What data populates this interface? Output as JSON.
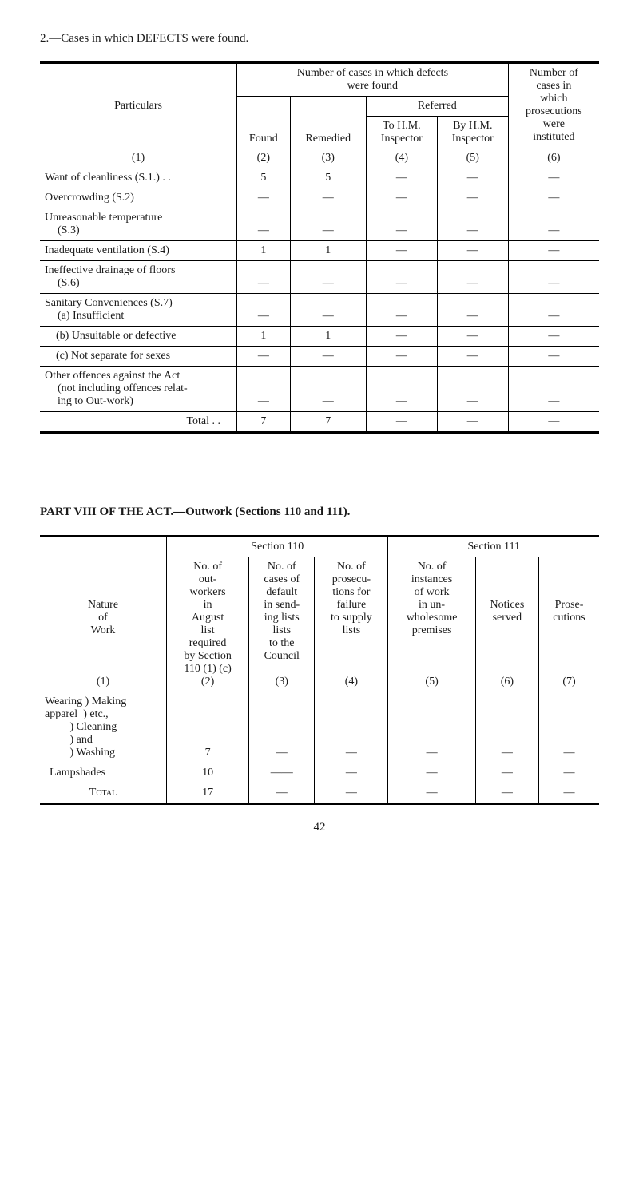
{
  "section1": {
    "title": "2.—Cases in which DEFECTS were found.",
    "header": {
      "particulars": "Particulars",
      "col1_num": "(1)",
      "number_cases_line1": "Number of cases in which defects",
      "number_cases_line2": "were found",
      "found": "Found",
      "found_num": "(2)",
      "remedied": "Remedied",
      "remedied_num": "(3)",
      "referred": "Referred",
      "to_hm": "To H.M.",
      "inspector1": "Inspector",
      "col4_num": "(4)",
      "by_hm": "By H.M.",
      "inspector2": "Inspector",
      "col5_num": "(5)",
      "pros_l1": "Number of",
      "pros_l2": "cases in",
      "pros_l3": "which",
      "pros_l4": "prosecutions",
      "pros_l5": "were",
      "pros_l6": "instituted",
      "col6_num": "(6)"
    },
    "rows": [
      {
        "label": "Want of cleanliness (S.1.) . .",
        "c2": "5",
        "c3": "5",
        "c4": "—",
        "c5": "—",
        "c6": "—"
      },
      {
        "label": "Overcrowding (S.2)",
        "c2": "—",
        "c3": "—",
        "c4": "—",
        "c5": "—",
        "c6": "—"
      },
      {
        "label_l1": "Unreasonable temperature",
        "label_l2": "(S.3)",
        "c2": "—",
        "c3": "—",
        "c4": "—",
        "c5": "—",
        "c6": "—"
      },
      {
        "label": "Inadequate ventilation (S.4)",
        "c2": "1",
        "c3": "1",
        "c4": "—",
        "c5": "—",
        "c6": "—"
      },
      {
        "label_l1": "Ineffective drainage of floors",
        "label_l2": "(S.6)",
        "c2": "—",
        "c3": "—",
        "c4": "—",
        "c5": "—",
        "c6": "—"
      },
      {
        "label_l1": "Sanitary Conveniences (S.7)",
        "label_l2": "(a) Insufficient",
        "c2": "—",
        "c3": "—",
        "c4": "—",
        "c5": "—",
        "c6": "—"
      },
      {
        "label": "(b) Unsuitable or defective",
        "indent": true,
        "c2": "1",
        "c3": "1",
        "c4": "—",
        "c5": "—",
        "c6": "—"
      },
      {
        "label": "(c) Not separate for sexes",
        "indent": true,
        "c2": "—",
        "c3": "—",
        "c4": "—",
        "c5": "—",
        "c6": "—"
      },
      {
        "label_l1": "Other offences against the Act",
        "label_l2": "(not including offences relat-",
        "label_l3": "ing to Out-work)",
        "c2": "—",
        "c3": "—",
        "c4": "—",
        "c5": "—",
        "c6": "—"
      }
    ],
    "total": {
      "label": "Total . .",
      "c2": "7",
      "c3": "7",
      "c4": "—",
      "c5": "—",
      "c6": "—"
    }
  },
  "section2": {
    "title": "PART VIII OF THE ACT.—Outwork (Sections 110 and 111).",
    "header": {
      "sec110": "Section 110",
      "sec111": "Section 111",
      "nature_l1": "Nature",
      "nature_l2": "of",
      "nature_l3": "Work",
      "col1_num": "(1)",
      "col2_l1": "No. of",
      "col2_l2": "out-",
      "col2_l3": "workers",
      "col2_l4": "in",
      "col2_l5": "August",
      "col2_l6": "list",
      "col2_l7": "required",
      "col2_l8": "by Section",
      "col2_l9": "110 (1) (c)",
      "col2_num": "(2)",
      "col3_l1": "No. of",
      "col3_l2": "cases of",
      "col3_l3": "default",
      "col3_l4": "in send-",
      "col3_l5": "ing lists",
      "col3_l6": "lists",
      "col3_l7": "to the",
      "col3_l8": "Council",
      "col3_num": "(3)",
      "col4_l1": "No. of",
      "col4_l2": "prosecu-",
      "col4_l3": "tions for",
      "col4_l4": "failure",
      "col4_l5": "to supply",
      "col4_l6": "lists",
      "col4_num": "(4)",
      "col5_l1": "No. of",
      "col5_l2": "instances",
      "col5_l3": "of work",
      "col5_l4": "in un-",
      "col5_l5": "wholesome",
      "col5_l6": "premises",
      "col5_num": "(5)",
      "col6_l1": "Notices",
      "col6_l2": "served",
      "col6_num": "(6)",
      "col7_l1": "Prose-",
      "col7_l2": "cutions",
      "col7_num": "(7)"
    },
    "rows": [
      {
        "label_lines": [
          "Wearing ) Making",
          "apparel  ) etc.,",
          "         ) Cleaning",
          "         ) and",
          "         ) Washing"
        ],
        "c2": "7",
        "c3": "—",
        "c4": "—",
        "c5": "—",
        "c6": "—",
        "c7": "—"
      },
      {
        "label": "Lampshades",
        "c2": "10",
        "c3": "——",
        "c4": "—",
        "c5": "—",
        "c6": "—",
        "c7": "—"
      }
    ],
    "total": {
      "label": "Total",
      "c2": "17",
      "c3": "—",
      "c4": "—",
      "c5": "—",
      "c6": "—",
      "c7": "—"
    }
  },
  "page_number": "42"
}
